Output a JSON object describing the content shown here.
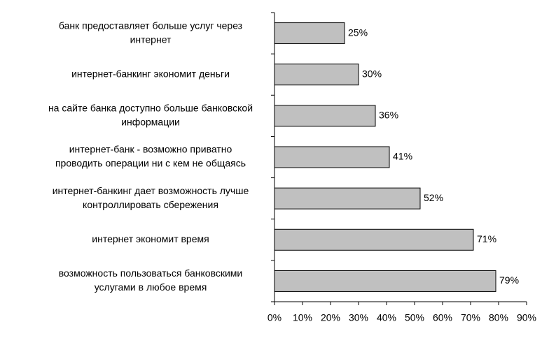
{
  "chart_data": {
    "type": "bar",
    "orientation": "horizontal",
    "categories": [
      [
        "банк предоставляет больше услуг через",
        "интернет"
      ],
      [
        "интернет-банкинг экономит деньги"
      ],
      [
        "на сайте банка доступно больше банковской",
        "информации"
      ],
      [
        "интернет-банк - возможно приватно",
        "проводить операции ни с кем не общаясь"
      ],
      [
        "интернет-банкинг дает возможность лучше",
        "контроллировать сбережения"
      ],
      [
        "интернет экономит время"
      ],
      [
        "возможность пользоваться банковскими",
        "услугами в любое время"
      ]
    ],
    "values": [
      25,
      30,
      36,
      41,
      52,
      71,
      79
    ],
    "value_labels": [
      "25%",
      "30%",
      "36%",
      "41%",
      "52%",
      "71%",
      "79%"
    ],
    "color": "#c0c0c0",
    "xlim": [
      0,
      90
    ],
    "xticks": [
      {
        "value": 0,
        "label": "0%"
      },
      {
        "value": 10,
        "label": "10%"
      },
      {
        "value": 20,
        "label": "20%"
      },
      {
        "value": 30,
        "label": "30%"
      },
      {
        "value": 40,
        "label": "40%"
      },
      {
        "value": 50,
        "label": "50%"
      },
      {
        "value": 60,
        "label": "60%"
      },
      {
        "value": 70,
        "label": "70%"
      },
      {
        "value": 80,
        "label": "80%"
      },
      {
        "value": 90,
        "label": "90%"
      }
    ]
  }
}
